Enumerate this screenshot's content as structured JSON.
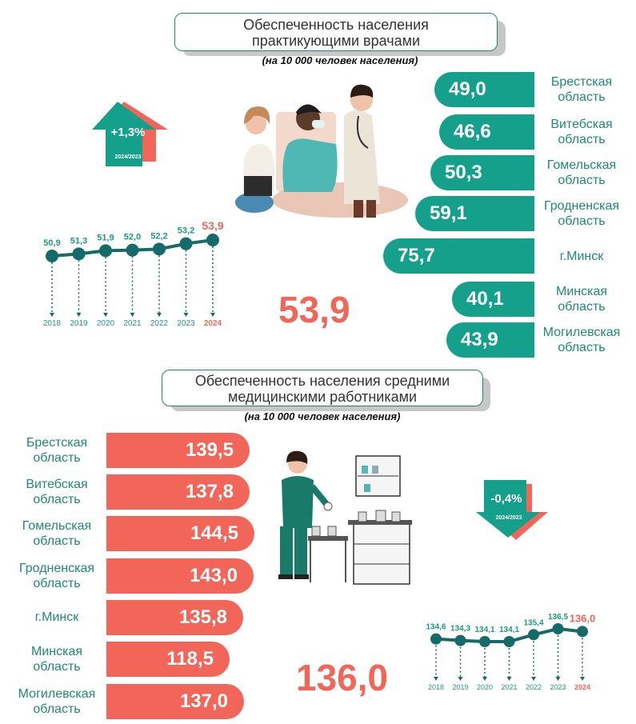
{
  "section1": {
    "title_line1": "Обеспеченность населения",
    "title_line2": "практикующими врачами",
    "subtitle": "(на 10 000 человек населения)",
    "change": "+1,3%",
    "change_period": "2024/2023",
    "total": "53,9",
    "regions": [
      {
        "value": "49,0",
        "name_l1": "Брестская",
        "name_l2": "область"
      },
      {
        "value": "46,6",
        "name_l1": "Витебская",
        "name_l2": "область"
      },
      {
        "value": "50,3",
        "name_l1": "Гомельская",
        "name_l2": "область"
      },
      {
        "value": "59,1",
        "name_l1": "Гродненская",
        "name_l2": "область"
      },
      {
        "value": "75,7",
        "name_l1": "г.Минск",
        "name_l2": ""
      },
      {
        "value": "40,1",
        "name_l1": "Минская",
        "name_l2": "область"
      },
      {
        "value": "43,9",
        "name_l1": "Могилевская",
        "name_l2": "область"
      }
    ],
    "trend": {
      "years": [
        "2018",
        "2019",
        "2020",
        "2021",
        "2022",
        "2023",
        "2024"
      ],
      "labels": [
        "50,9",
        "51,3",
        "51,9",
        "52,0",
        "52,2",
        "53,2",
        "53,9"
      ],
      "values": [
        50.9,
        51.3,
        51.9,
        52.0,
        52.2,
        53.2,
        53.9
      ]
    }
  },
  "section2": {
    "title_line1": "Обеспеченность населения средними",
    "title_line2": "медицинскими работниками",
    "subtitle": "(на 10 000 человек населения)",
    "change": "-0,4%",
    "change_period": "2024/2023",
    "total": "136,0",
    "regions": [
      {
        "value": "139,5",
        "name_l1": "Брестская",
        "name_l2": "область"
      },
      {
        "value": "137,8",
        "name_l1": "Витебская",
        "name_l2": "область"
      },
      {
        "value": "144,5",
        "name_l1": "Гомельская",
        "name_l2": "область"
      },
      {
        "value": "143,0",
        "name_l1": "Гродненская",
        "name_l2": "область"
      },
      {
        "value": "135,8",
        "name_l1": "г.Минск",
        "name_l2": ""
      },
      {
        "value": "118,5",
        "name_l1": "Минская",
        "name_l2": "область"
      },
      {
        "value": "137,0",
        "name_l1": "Могилевская",
        "name_l2": "область"
      }
    ],
    "trend": {
      "years": [
        "2018",
        "2019",
        "2020",
        "2021",
        "2022",
        "2023",
        "2024"
      ],
      "labels": [
        "134,6",
        "134,3",
        "134,1",
        "134,1",
        "135,4",
        "136,5",
        "136,0"
      ],
      "values": [
        134.6,
        134.3,
        134.1,
        134.1,
        135.4,
        136.5,
        136.0
      ]
    }
  },
  "colors": {
    "teal": "#14a08a",
    "dark_teal": "#1e8a72",
    "line": "#156b68",
    "coral": "#f2665a"
  }
}
